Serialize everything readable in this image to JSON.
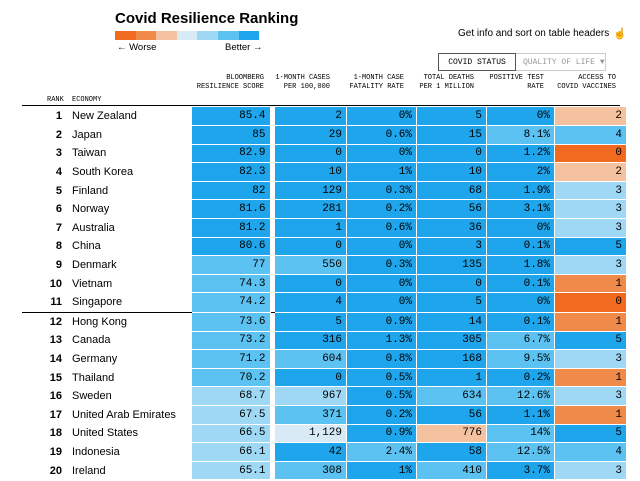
{
  "title": "Covid Resilience Ranking",
  "legend": {
    "worse_label": "← Worse",
    "better_label": "Better →",
    "colors": [
      "#f06a1f",
      "#f08a4a",
      "#f5c2a0",
      "#d7eaf5",
      "#9fd8f5",
      "#5cc2f2",
      "#1ea5ec"
    ]
  },
  "info_text": "Get info and sort on table headers",
  "info_icon": "hand-pointer-icon",
  "tabs": {
    "active": "COVID STATUS",
    "inactive": "QUALITY OF LIFE ▼"
  },
  "headers": {
    "rank": "RANK",
    "economy": "ECONOMY",
    "score": "BLOOMBERG RESILIENCE SCORE",
    "cases": "1-MONTH CASES PER 100,000",
    "cfr": "1-MONTH CASE FATALITY RATE",
    "deaths": "TOTAL DEATHS PER 1 MILLION",
    "positive": "POSITIVE TEST RATE",
    "vaccines": "ACCESS TO COVID VACCINES"
  },
  "rows": [
    {
      "rank": "1",
      "name": "New Zealand",
      "score": "85.4",
      "cases": "2",
      "cfr": "0%",
      "deaths": "5",
      "pos": "0%",
      "vac": "2",
      "c": [
        "#1ea5ec",
        "#1ea5ec",
        "#1ea5ec",
        "#1ea5ec",
        "#1ea5ec",
        "#f5c2a0"
      ]
    },
    {
      "rank": "2",
      "name": "Japan",
      "score": "85",
      "cases": "29",
      "cfr": "0.6%",
      "deaths": "15",
      "pos": "8.1%",
      "vac": "4",
      "c": [
        "#1ea5ec",
        "#1ea5ec",
        "#1ea5ec",
        "#1ea5ec",
        "#5cc2f2",
        "#5cc2f2"
      ]
    },
    {
      "rank": "3",
      "name": "Taiwan",
      "score": "82.9",
      "cases": "0",
      "cfr": "0%",
      "deaths": "0",
      "pos": "1.2%",
      "vac": "0",
      "c": [
        "#1ea5ec",
        "#1ea5ec",
        "#1ea5ec",
        "#1ea5ec",
        "#1ea5ec",
        "#f06a1f"
      ]
    },
    {
      "rank": "4",
      "name": "South Korea",
      "score": "82.3",
      "cases": "10",
      "cfr": "1%",
      "deaths": "10",
      "pos": "2%",
      "vac": "2",
      "c": [
        "#1ea5ec",
        "#1ea5ec",
        "#1ea5ec",
        "#1ea5ec",
        "#1ea5ec",
        "#f5c2a0"
      ]
    },
    {
      "rank": "5",
      "name": "Finland",
      "score": "82",
      "cases": "129",
      "cfr": "0.3%",
      "deaths": "68",
      "pos": "1.9%",
      "vac": "3",
      "c": [
        "#1ea5ec",
        "#1ea5ec",
        "#1ea5ec",
        "#1ea5ec",
        "#1ea5ec",
        "#9fd8f5"
      ]
    },
    {
      "rank": "6",
      "name": "Norway",
      "score": "81.6",
      "cases": "281",
      "cfr": "0.2%",
      "deaths": "56",
      "pos": "3.1%",
      "vac": "3",
      "c": [
        "#1ea5ec",
        "#1ea5ec",
        "#1ea5ec",
        "#1ea5ec",
        "#1ea5ec",
        "#9fd8f5"
      ]
    },
    {
      "rank": "7",
      "name": "Australia",
      "score": "81.2",
      "cases": "1",
      "cfr": "0.6%",
      "deaths": "36",
      "pos": "0%",
      "vac": "3",
      "c": [
        "#1ea5ec",
        "#1ea5ec",
        "#1ea5ec",
        "#1ea5ec",
        "#1ea5ec",
        "#9fd8f5"
      ]
    },
    {
      "rank": "8",
      "name": "China",
      "score": "80.6",
      "cases": "0",
      "cfr": "0%",
      "deaths": "3",
      "pos": "0.1%",
      "vac": "5",
      "c": [
        "#1ea5ec",
        "#1ea5ec",
        "#1ea5ec",
        "#1ea5ec",
        "#1ea5ec",
        "#1ea5ec"
      ]
    },
    {
      "rank": "9",
      "name": "Denmark",
      "score": "77",
      "cases": "550",
      "cfr": "0.3%",
      "deaths": "135",
      "pos": "1.8%",
      "vac": "3",
      "c": [
        "#5cc2f2",
        "#5cc2f2",
        "#1ea5ec",
        "#1ea5ec",
        "#1ea5ec",
        "#9fd8f5"
      ]
    },
    {
      "rank": "10",
      "name": "Vietnam",
      "score": "74.3",
      "cases": "0",
      "cfr": "0%",
      "deaths": "0",
      "pos": "0.1%",
      "vac": "1",
      "c": [
        "#5cc2f2",
        "#1ea5ec",
        "#1ea5ec",
        "#1ea5ec",
        "#1ea5ec",
        "#f08a4a"
      ]
    },
    {
      "rank": "11",
      "name": "Singapore",
      "score": "74.2",
      "cases": "4",
      "cfr": "0%",
      "deaths": "5",
      "pos": "0%",
      "vac": "0",
      "c": [
        "#5cc2f2",
        "#1ea5ec",
        "#1ea5ec",
        "#1ea5ec",
        "#1ea5ec",
        "#f06a1f"
      ]
    },
    {
      "rank": "12",
      "name": "Hong Kong",
      "score": "73.6",
      "cases": "5",
      "cfr": "0.9%",
      "deaths": "14",
      "pos": "0.1%",
      "vac": "1",
      "c": [
        "#5cc2f2",
        "#1ea5ec",
        "#1ea5ec",
        "#1ea5ec",
        "#1ea5ec",
        "#f08a4a"
      ]
    },
    {
      "rank": "13",
      "name": "Canada",
      "score": "73.2",
      "cases": "316",
      "cfr": "1.3%",
      "deaths": "305",
      "pos": "6.7%",
      "vac": "5",
      "c": [
        "#5cc2f2",
        "#1ea5ec",
        "#1ea5ec",
        "#1ea5ec",
        "#5cc2f2",
        "#1ea5ec"
      ]
    },
    {
      "rank": "14",
      "name": "Germany",
      "score": "71.2",
      "cases": "604",
      "cfr": "0.8%",
      "deaths": "168",
      "pos": "9.5%",
      "vac": "3",
      "c": [
        "#5cc2f2",
        "#5cc2f2",
        "#1ea5ec",
        "#1ea5ec",
        "#5cc2f2",
        "#9fd8f5"
      ]
    },
    {
      "rank": "15",
      "name": "Thailand",
      "score": "70.2",
      "cases": "0",
      "cfr": "0.5%",
      "deaths": "1",
      "pos": "0.2%",
      "vac": "1",
      "c": [
        "#5cc2f2",
        "#1ea5ec",
        "#1ea5ec",
        "#1ea5ec",
        "#1ea5ec",
        "#f08a4a"
      ]
    },
    {
      "rank": "16",
      "name": "Sweden",
      "score": "68.7",
      "cases": "967",
      "cfr": "0.5%",
      "deaths": "634",
      "pos": "12.6%",
      "vac": "3",
      "c": [
        "#9fd8f5",
        "#9fd8f5",
        "#1ea5ec",
        "#5cc2f2",
        "#5cc2f2",
        "#9fd8f5"
      ]
    },
    {
      "rank": "17",
      "name": "United Arab Emirates",
      "score": "67.5",
      "cases": "371",
      "cfr": "0.2%",
      "deaths": "56",
      "pos": "1.1%",
      "vac": "1",
      "c": [
        "#9fd8f5",
        "#5cc2f2",
        "#1ea5ec",
        "#1ea5ec",
        "#1ea5ec",
        "#f08a4a"
      ]
    },
    {
      "rank": "18",
      "name": "United States",
      "score": "66.5",
      "cases": "1,129",
      "cfr": "0.9%",
      "deaths": "776",
      "pos": "14%",
      "vac": "5",
      "c": [
        "#9fd8f5",
        "#d7eaf5",
        "#1ea5ec",
        "#f5c2a0",
        "#5cc2f2",
        "#1ea5ec"
      ]
    },
    {
      "rank": "19",
      "name": "Indonesia",
      "score": "66.1",
      "cases": "42",
      "cfr": "2.4%",
      "deaths": "58",
      "pos": "12.5%",
      "vac": "4",
      "c": [
        "#9fd8f5",
        "#1ea5ec",
        "#5cc2f2",
        "#1ea5ec",
        "#5cc2f2",
        "#5cc2f2"
      ]
    },
    {
      "rank": "20",
      "name": "Ireland",
      "score": "65.1",
      "cases": "308",
      "cfr": "1%",
      "deaths": "410",
      "pos": "3.7%",
      "vac": "3",
      "c": [
        "#9fd8f5",
        "#5cc2f2",
        "#1ea5ec",
        "#5cc2f2",
        "#1ea5ec",
        "#9fd8f5"
      ]
    }
  ]
}
